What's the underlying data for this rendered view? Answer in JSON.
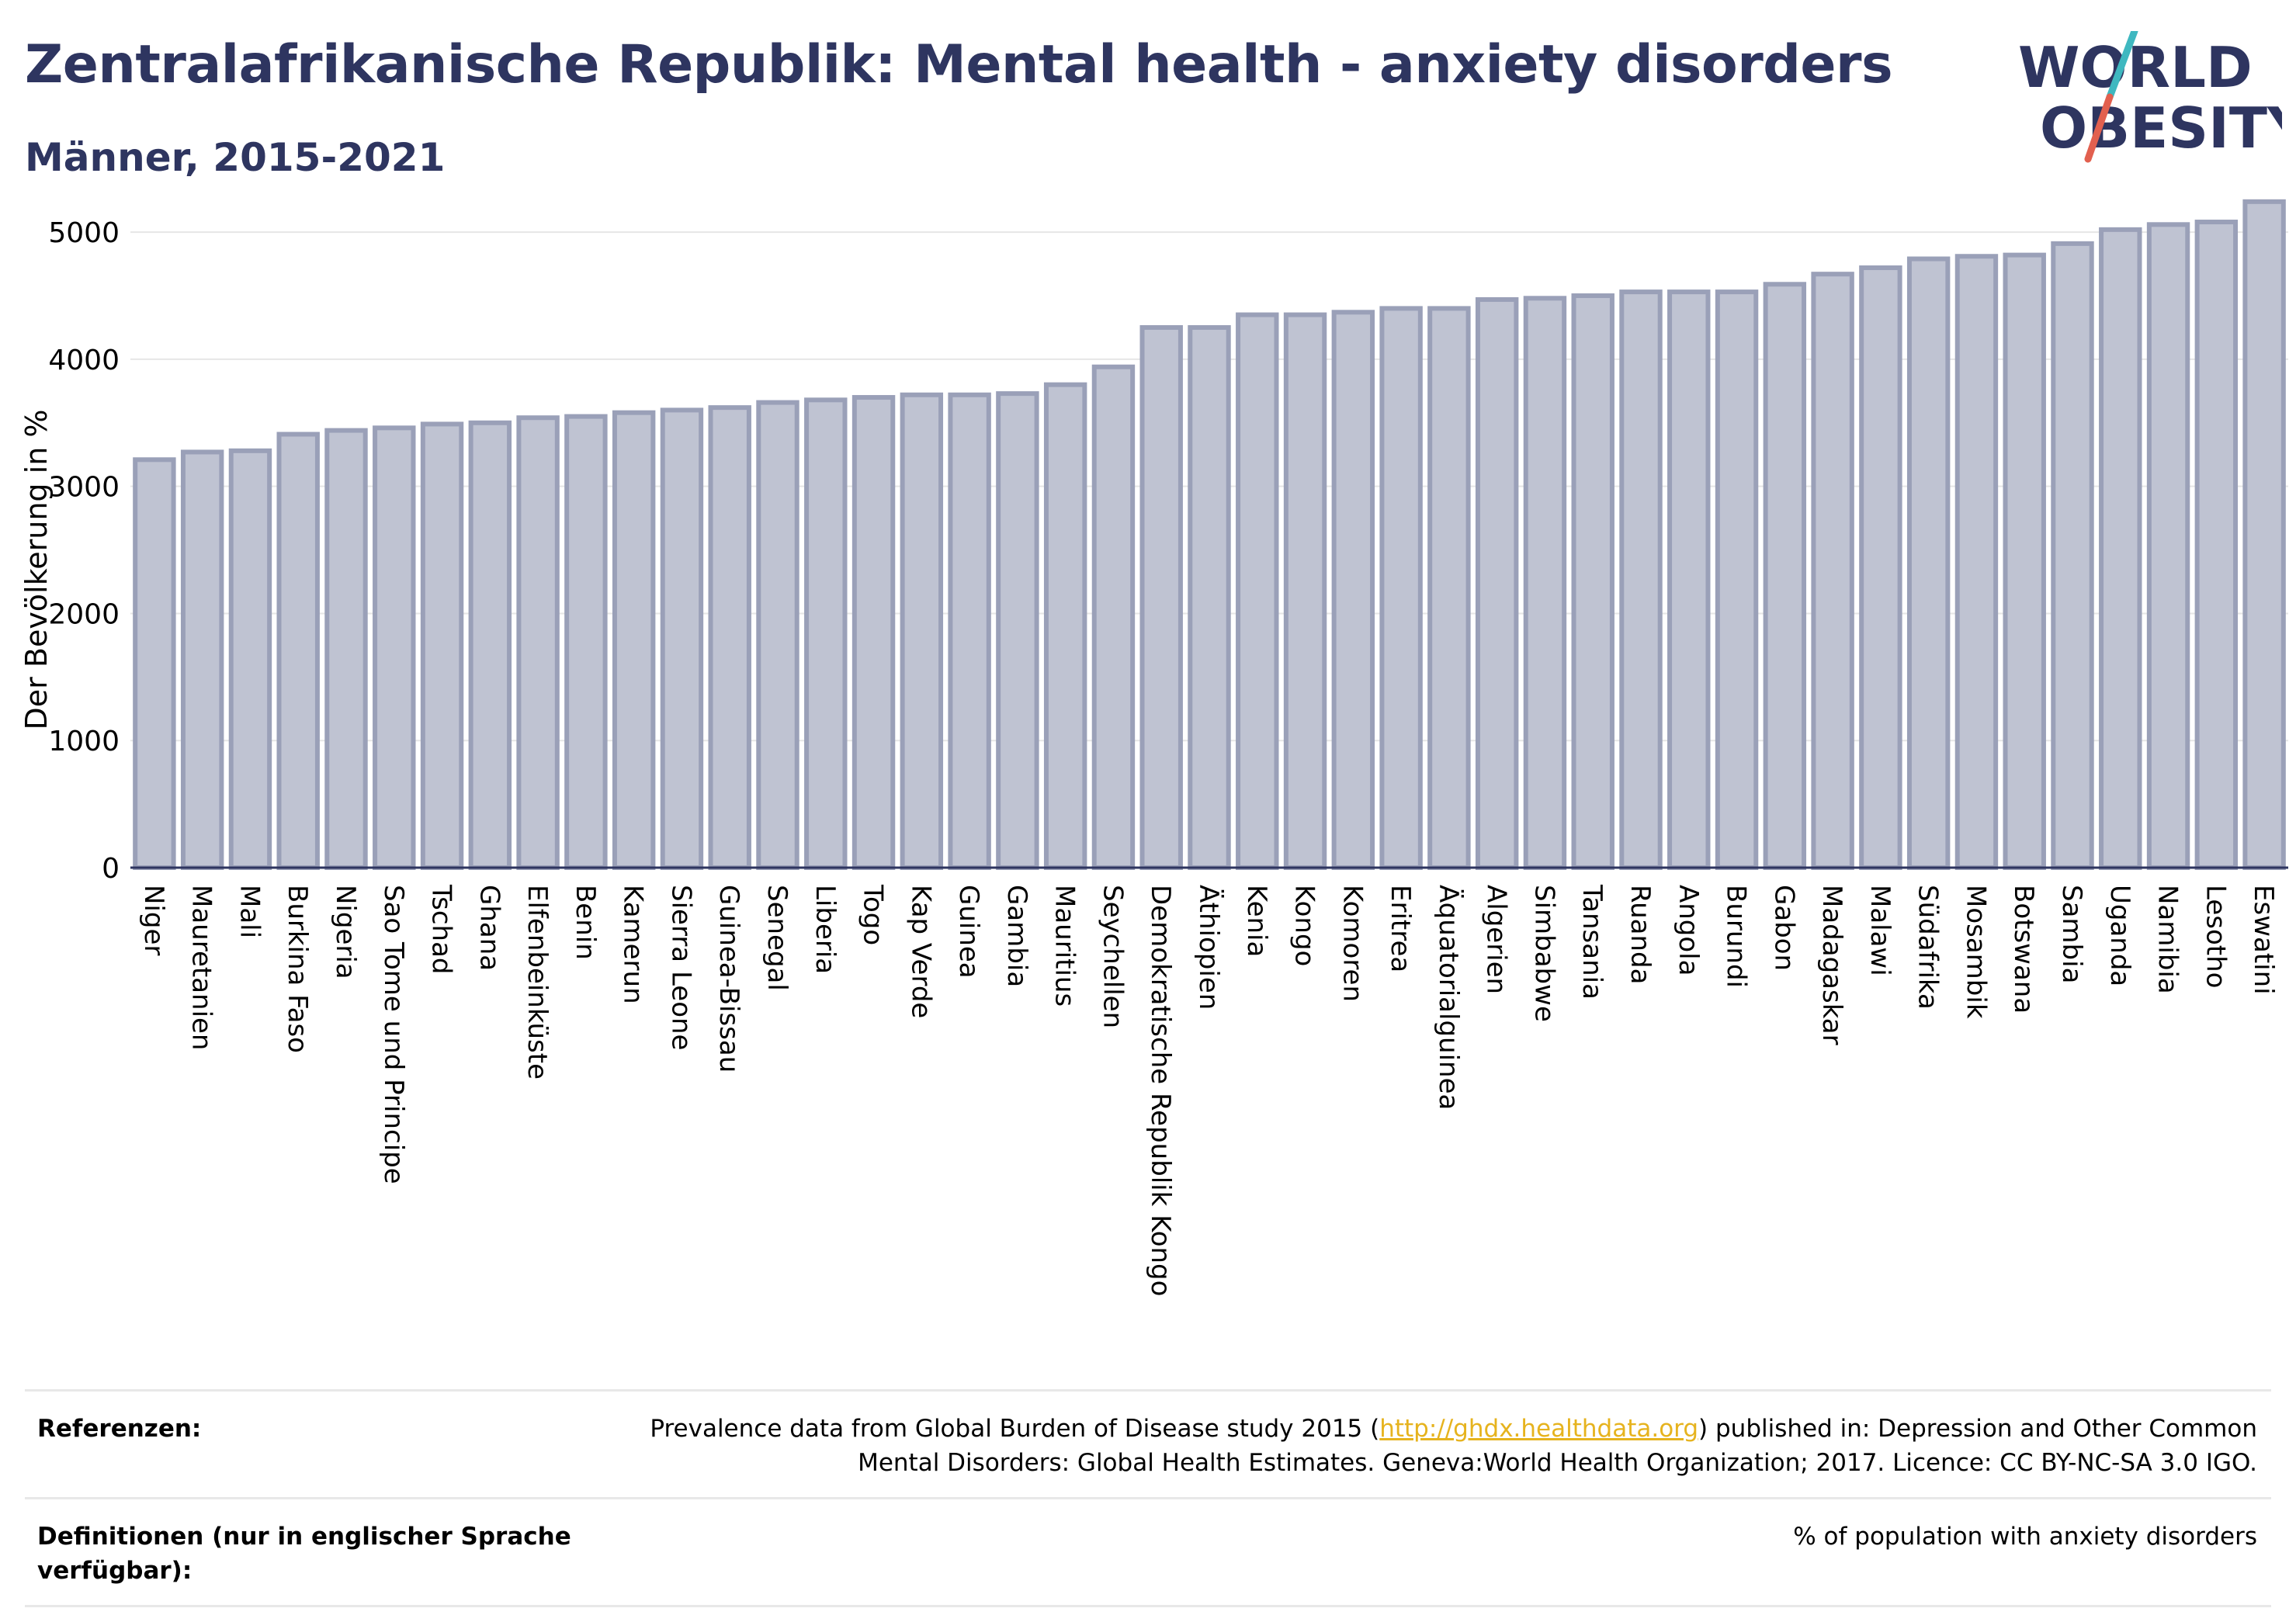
{
  "title": "Zentralafrikanische Republik: Mental health - anxiety disorders",
  "subtitle": "Männer, 2015-2021",
  "logo": {
    "line1": "WORLD",
    "line2": "OBESITY",
    "accent_teal": "#3fb8c0",
    "accent_red": "#e2604f",
    "color": "#2e3560"
  },
  "chart_data": {
    "type": "bar",
    "ylabel": "Der Bevölkerung in %",
    "ylim": [
      0,
      5300
    ],
    "yticks": [
      0,
      1000,
      2000,
      3000,
      4000,
      5000
    ],
    "grid": true,
    "bar_fill": "#bfc3d2",
    "bar_stroke": "#9aa0b8",
    "categories": [
      "Niger",
      "Mauretanien",
      "Mali",
      "Burkina Faso",
      "Nigeria",
      "Sao Tome und Principe",
      "Tschad",
      "Ghana",
      "Elfenbeinküste",
      "Benin",
      "Kamerun",
      "Sierra Leone",
      "Guinea-Bissau",
      "Senegal",
      "Liberia",
      "Togo",
      "Kap Verde",
      "Guinea",
      "Gambia",
      "Mauritius",
      "Seychellen",
      "Demokratische Republik Kongo",
      "Äthiopien",
      "Kenia",
      "Kongo",
      "Komoren",
      "Eritrea",
      "Äquatorialguinea",
      "Algerien",
      "Simbabwe",
      "Tansania",
      "Ruanda",
      "Angola",
      "Burundi",
      "Gabon",
      "Madagaskar",
      "Malawi",
      "Südafrika",
      "Mosambik",
      "Botswana",
      "Sambia",
      "Uganda",
      "Namibia",
      "Lesotho",
      "Eswatini"
    ],
    "values": [
      3210,
      3270,
      3280,
      3410,
      3440,
      3460,
      3490,
      3500,
      3540,
      3550,
      3580,
      3600,
      3620,
      3660,
      3680,
      3700,
      3720,
      3720,
      3730,
      3800,
      3940,
      4250,
      4250,
      4350,
      4350,
      4370,
      4400,
      4400,
      4470,
      4480,
      4500,
      4530,
      4530,
      4530,
      4590,
      4670,
      4720,
      4790,
      4810,
      4820,
      4910,
      5020,
      5060,
      5080,
      5240
    ]
  },
  "footer": {
    "references_label": "Referenzen:",
    "references_pre": "Prevalence data from Global Burden of Disease study 2015 (",
    "references_link": "http://ghdx.healthdata.org",
    "references_post": ") published in: Depression and Other Common Mental Disorders: Global Health Estimates. Geneva:World Health Organization; 2017. Licence: CC BY-NC-SA 3.0 IGO.",
    "definitions_label": "Definitionen (nur in englischer Sprache verfügbar):",
    "definitions_text": "% of population with anxiety disorders"
  }
}
